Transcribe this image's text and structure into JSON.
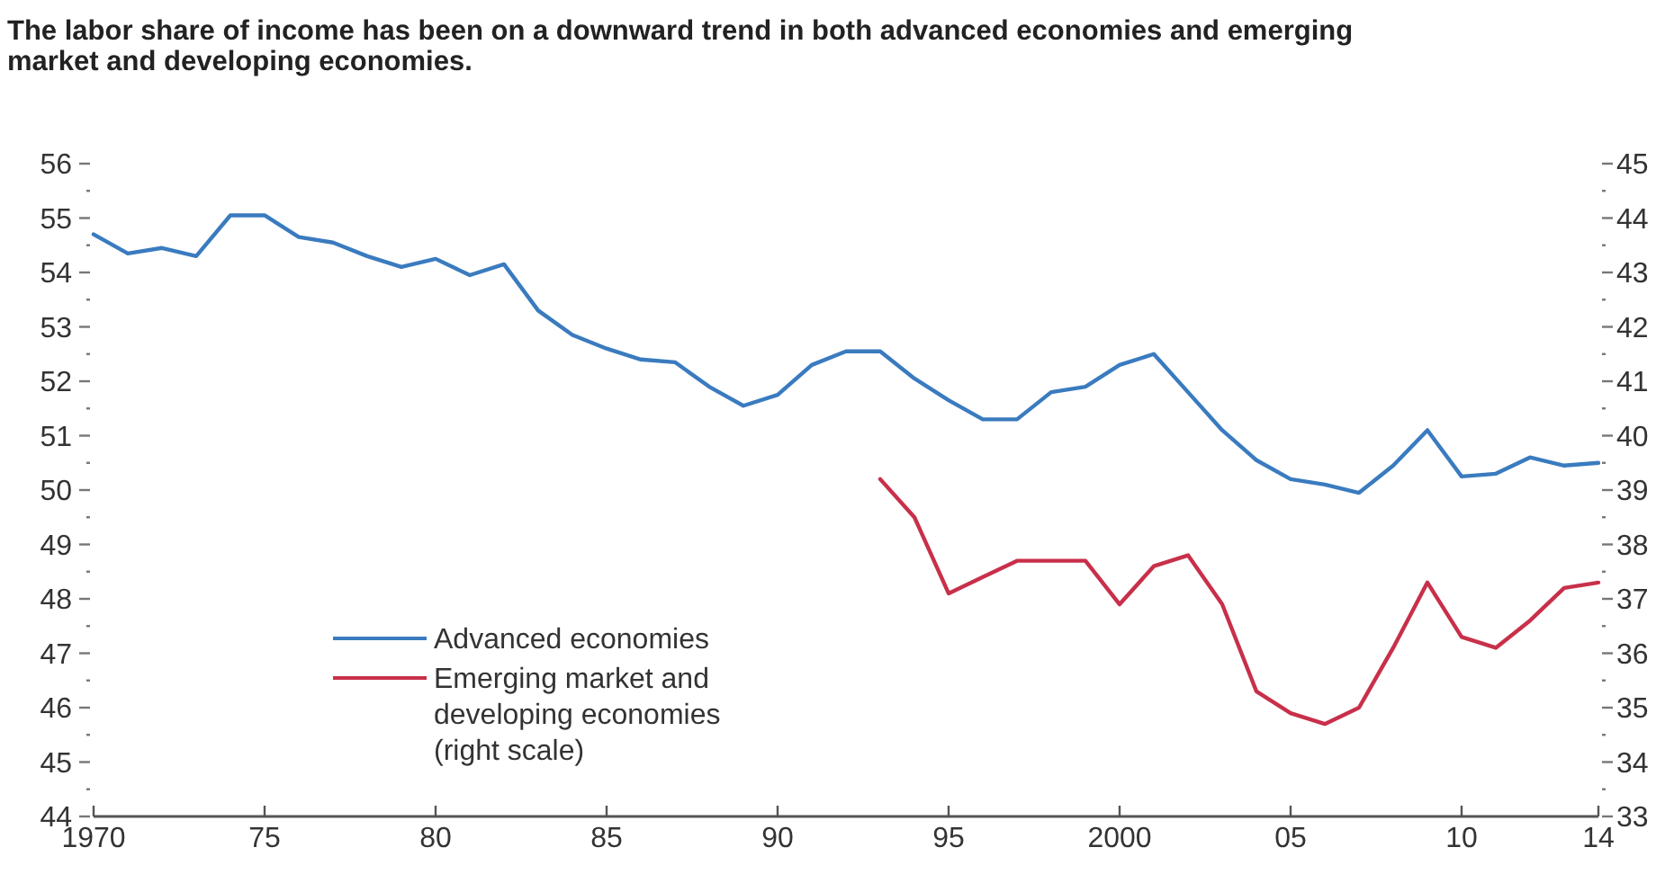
{
  "chart_data": {
    "type": "line",
    "title": "The labor share of income has been on a downward trend in both advanced economies and emerging market and developing economies.",
    "x": [
      1970,
      1971,
      1972,
      1973,
      1974,
      1975,
      1976,
      1977,
      1978,
      1979,
      1980,
      1981,
      1982,
      1983,
      1984,
      1985,
      1986,
      1987,
      1988,
      1989,
      1990,
      1991,
      1992,
      1993,
      1994,
      1995,
      1996,
      1997,
      1998,
      1999,
      2000,
      2001,
      2002,
      2003,
      2004,
      2005,
      2006,
      2007,
      2008,
      2009,
      2010,
      2011,
      2012,
      2013,
      2014
    ],
    "series": [
      {
        "name": "Advanced economies",
        "color": "#3a7bbf",
        "values": [
          54.7,
          54.35,
          54.45,
          54.3,
          55.05,
          55.05,
          54.65,
          54.55,
          54.3,
          54.1,
          54.25,
          53.95,
          54.15,
          53.3,
          52.85,
          52.6,
          52.4,
          52.35,
          51.9,
          51.55,
          51.75,
          52.3,
          52.55,
          52.55,
          52.05,
          51.65,
          51.3,
          51.3,
          51.8,
          51.9,
          52.3,
          52.5,
          51.8,
          51.1,
          50.55,
          50.2,
          50.1,
          49.95,
          50.45,
          51.1,
          50.25,
          50.3,
          50.6,
          50.45,
          50.5
        ]
      },
      {
        "name": "Emerging market and developing economies (right scale)",
        "color": "#c8304a",
        "axis": "y2",
        "x": [
          1993,
          1994,
          1995,
          1996,
          1997,
          1998,
          1999,
          2000,
          2001,
          2002,
          2003,
          2004,
          2005,
          2006,
          2007,
          2008,
          2009,
          2010,
          2011,
          2012,
          2013,
          2014
        ],
        "values": [
          39.2,
          38.5,
          37.1,
          37.4,
          37.7,
          37.7,
          37.7,
          36.9,
          37.6,
          37.8,
          36.9,
          35.3,
          34.9,
          34.7,
          35.0,
          36.1,
          37.3,
          36.3,
          36.1,
          36.6,
          37.2,
          37.3
        ]
      }
    ],
    "xlim": [
      1970,
      2014
    ],
    "xticks": [
      {
        "value": 1970,
        "label": "1970"
      },
      {
        "value": 1975,
        "label": "75"
      },
      {
        "value": 1980,
        "label": "80"
      },
      {
        "value": 1985,
        "label": "85"
      },
      {
        "value": 1990,
        "label": "90"
      },
      {
        "value": 1995,
        "label": "95"
      },
      {
        "value": 2000,
        "label": "2000"
      },
      {
        "value": 2005,
        "label": "05"
      },
      {
        "value": 2010,
        "label": "10"
      },
      {
        "value": 2014,
        "label": "14"
      }
    ],
    "ylim": [
      44,
      56
    ],
    "yticks": [
      44,
      {
        "value": 44.5,
        "label": null
      },
      45,
      {
        "value": 45.5,
        "label": null
      },
      46,
      {
        "value": 46.5,
        "label": null
      },
      47,
      {
        "value": 47.5,
        "label": null
      },
      48,
      {
        "value": 48.5,
        "label": null
      },
      49,
      {
        "value": 49.5,
        "label": null
      },
      50,
      {
        "value": 50.5,
        "label": null
      },
      51,
      {
        "value": 51.5,
        "label": null
      },
      52,
      {
        "value": 52.5,
        "label": null
      },
      53,
      {
        "value": 53.5,
        "label": null
      },
      54,
      {
        "value": 54.5,
        "label": null
      },
      55,
      {
        "value": 55.5,
        "label": null
      },
      56
    ],
    "y2lim": [
      33,
      45
    ],
    "y2ticks": [
      33,
      {
        "value": 33.5,
        "label": null
      },
      34,
      {
        "value": 34.5,
        "label": null
      },
      35,
      {
        "value": 35.5,
        "label": null
      },
      36,
      {
        "value": 36.5,
        "label": null
      },
      37,
      {
        "value": 37.5,
        "label": null
      },
      38,
      {
        "value": 38.5,
        "label": null
      },
      39,
      {
        "value": 39.5,
        "label": null
      },
      40,
      {
        "value": 40.5,
        "label": null
      },
      41,
      {
        "value": 41.5,
        "label": null
      },
      42,
      {
        "value": 42.5,
        "label": null
      },
      43,
      {
        "value": 43.5,
        "label": null
      },
      44,
      {
        "value": 44.5,
        "label": null
      },
      45
    ],
    "grid": false,
    "legend": "bottom left",
    "line_style": "solid",
    "marker": "none"
  }
}
